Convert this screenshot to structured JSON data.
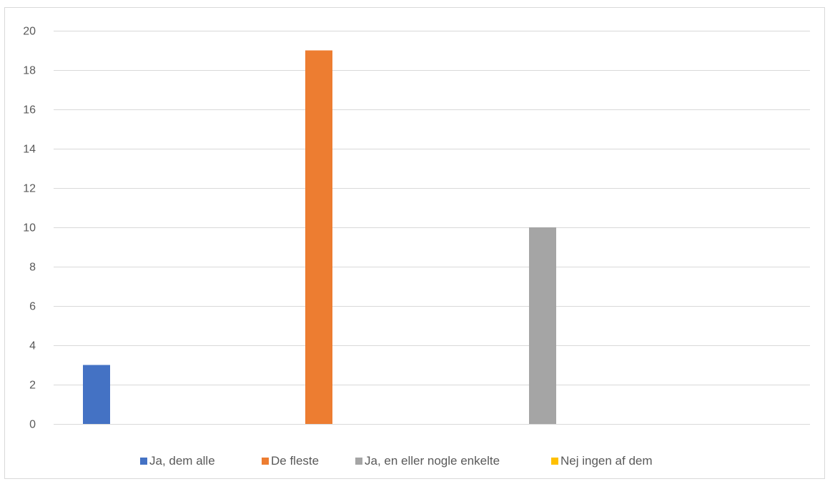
{
  "chart_data": {
    "type": "bar",
    "title": "",
    "xlabel": "",
    "ylabel": "",
    "ylim": [
      0,
      20
    ],
    "yticks": [
      "0",
      "2",
      "4",
      "6",
      "8",
      "10",
      "12",
      "14",
      "16",
      "18",
      "20"
    ],
    "grid": true,
    "legend_position": "bottom",
    "series": [
      {
        "name": "Ja, dem alle",
        "values": [
          3
        ],
        "color": "#4472C4"
      },
      {
        "name": "De fleste",
        "values": [
          19
        ],
        "color": "#ED7D31"
      },
      {
        "name": "Ja, en eller nogle enkelte",
        "values": [
          10
        ],
        "color": "#A5A5A5"
      },
      {
        "name": "Nej ingen af dem",
        "values": [
          0
        ],
        "color": "#FFC000"
      }
    ]
  }
}
